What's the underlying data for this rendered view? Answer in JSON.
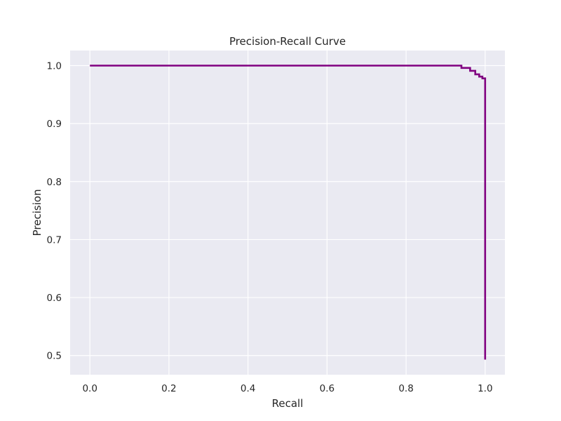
{
  "chart_data": {
    "type": "line",
    "title": "Precision-Recall Curve",
    "xlabel": "Recall",
    "ylabel": "Precision",
    "xlim": [
      -0.05,
      1.05
    ],
    "ylim": [
      0.467,
      1.026
    ],
    "xticks": [
      0.0,
      0.2,
      0.4,
      0.6,
      0.8,
      1.0
    ],
    "xtick_labels": [
      "0.0",
      "0.2",
      "0.4",
      "0.6",
      "0.8",
      "1.0"
    ],
    "yticks": [
      0.5,
      0.6,
      0.7,
      0.8,
      0.9,
      1.0
    ],
    "ytick_labels": [
      "0.5",
      "0.6",
      "0.7",
      "0.8",
      "0.9",
      "1.0"
    ],
    "grid": true,
    "step": true,
    "series": [
      {
        "color": "#800080",
        "x": [
          0.0,
          0.94,
          0.94,
          0.962,
          0.962,
          0.975,
          0.975,
          0.985,
          0.985,
          0.993,
          0.993,
          1.0,
          1.0
        ],
        "y": [
          1.0,
          1.0,
          0.996,
          0.996,
          0.991,
          0.991,
          0.985,
          0.985,
          0.981,
          0.981,
          0.978,
          0.978,
          0.493
        ]
      }
    ],
    "colors": {
      "background": "#EAEAF2",
      "grid": "#FFFFFF",
      "text": "#262626"
    }
  }
}
